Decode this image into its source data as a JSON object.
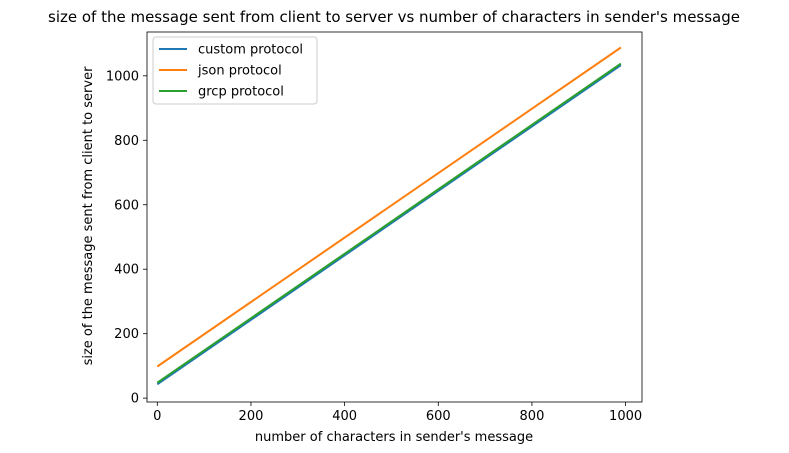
{
  "chart_data": {
    "type": "line",
    "title": "size of the message sent from client to server vs number of characters in sender's message",
    "xlabel": "number of characters in sender's message",
    "ylabel": "size of the message sent from client to server",
    "xlim": [
      -22,
      1035
    ],
    "ylim": [
      -12,
      1136
    ],
    "xticks": [
      0,
      200,
      400,
      600,
      800,
      1000
    ],
    "yticks": [
      0,
      200,
      400,
      600,
      800,
      1000
    ],
    "grid": false,
    "legend_position": "top-left",
    "x": [
      0,
      990
    ],
    "series": [
      {
        "name": "custom protocol",
        "color": "#1f77b4",
        "values": [
          43,
          1033
        ]
      },
      {
        "name": "json protocol",
        "color": "#ff7f0e",
        "values": [
          98,
          1088
        ]
      },
      {
        "name": "grcp protocol",
        "color": "#2ca02c",
        "values": [
          48,
          1038
        ]
      }
    ]
  }
}
